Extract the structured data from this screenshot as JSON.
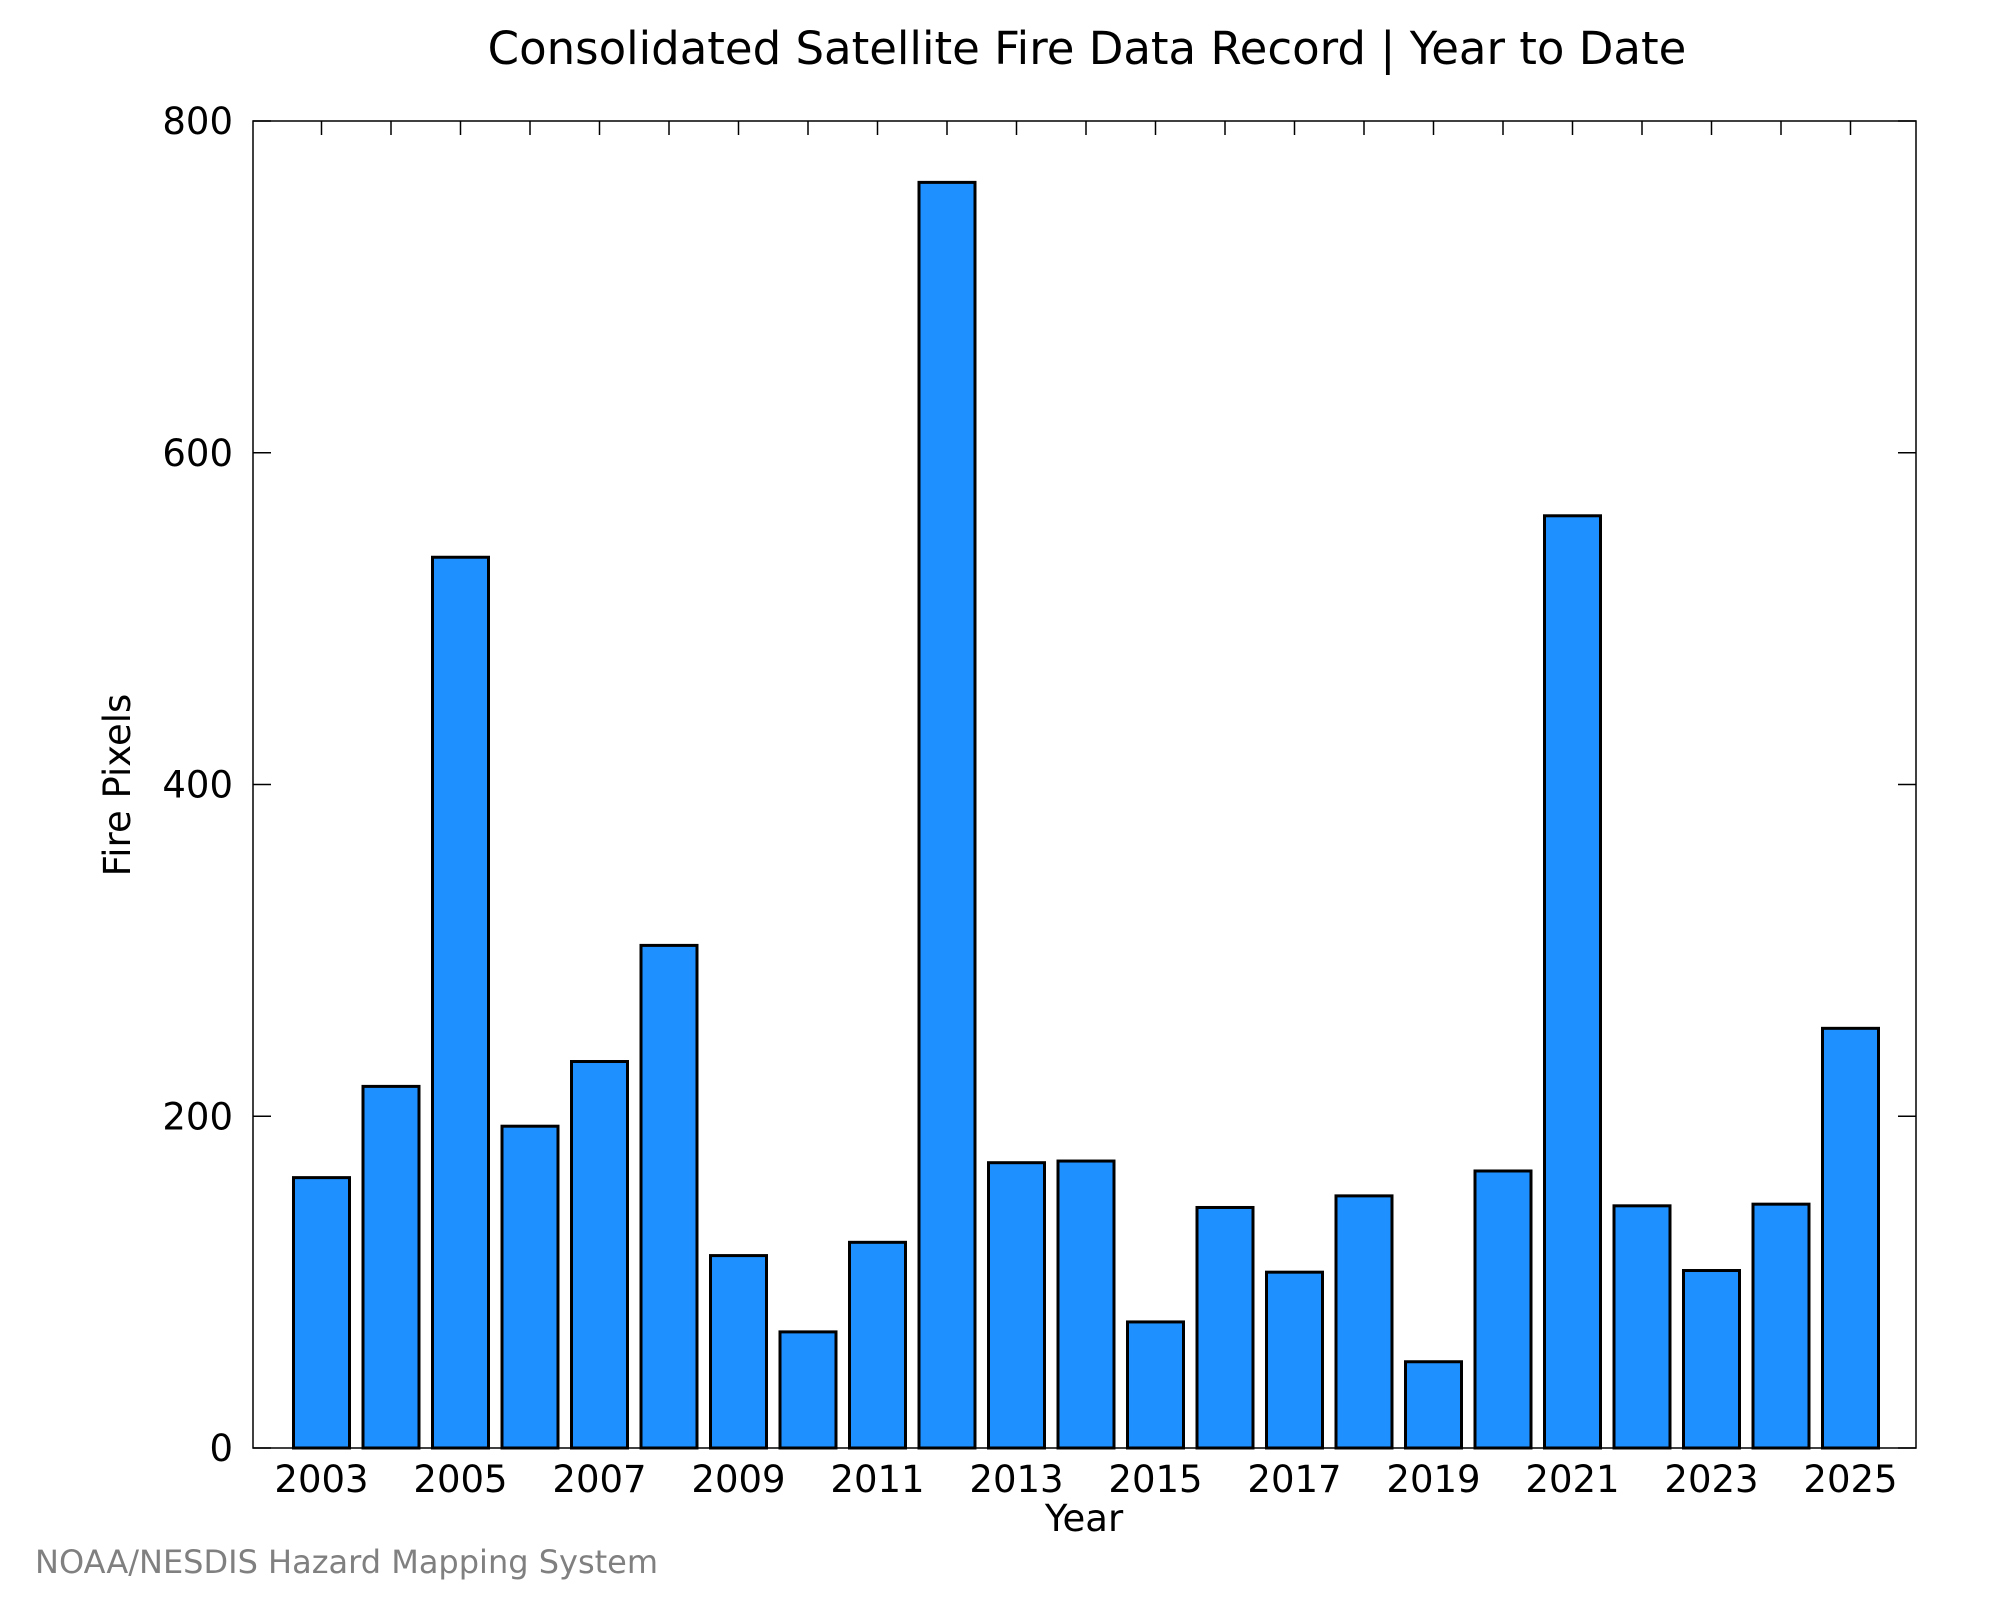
{
  "chart_data": {
    "type": "bar",
    "title": "Consolidated Satellite Fire Data Record | Year to Date",
    "xlabel": "Year",
    "ylabel": "Fire Pixels",
    "categories": [
      2003,
      2004,
      2005,
      2006,
      2007,
      2008,
      2009,
      2010,
      2011,
      2012,
      2013,
      2014,
      2015,
      2016,
      2017,
      2018,
      2019,
      2020,
      2021,
      2022,
      2023,
      2024,
      2025
    ],
    "values": [
      163,
      218,
      537,
      194,
      233,
      303,
      116,
      70,
      124,
      763,
      172,
      173,
      76,
      145,
      106,
      152,
      52,
      167,
      562,
      146,
      107,
      147,
      253
    ],
    "x_tick_labels": [
      "2003",
      "2005",
      "2007",
      "2009",
      "2011",
      "2013",
      "2015",
      "2017",
      "2019",
      "2021",
      "2023",
      "2025"
    ],
    "y_tick_labels": [
      "0",
      "200",
      "400",
      "600",
      "800"
    ],
    "ylim": [
      0,
      800
    ],
    "bar_color": "#1e90ff",
    "grid": false,
    "legend": "none"
  },
  "credit": "NOAA/NESDIS Hazard Mapping System"
}
